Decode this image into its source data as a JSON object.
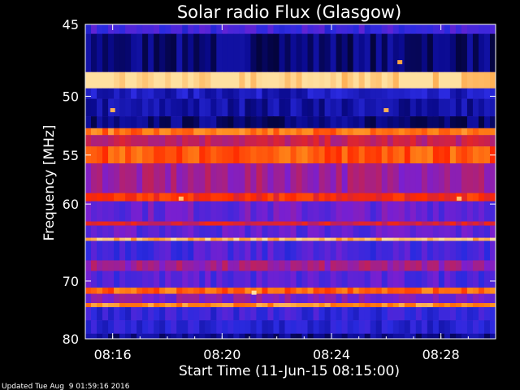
{
  "chart_data": {
    "type": "heatmap",
    "title": "Solar radio Flux (Glasgow)",
    "ylabel": "Frequency [MHz]",
    "xlabel": "Start Time (11-Jun-15 08:15:00)",
    "y_scale": "reciprocal",
    "ylim": [
      45,
      80
    ],
    "y_ticks": [
      45,
      50,
      55,
      60,
      70,
      80
    ],
    "y_tick_labels": [
      "45",
      "50",
      "55",
      "60",
      "70",
      "80"
    ],
    "x_start": "08:15:00",
    "x_end": "08:30:00",
    "x_ticks": [
      "08:16:00",
      "08:20:00",
      "08:24:00",
      "08:28:00"
    ],
    "x_tick_labels": [
      "08:16",
      "08:20",
      "08:24",
      "08:28"
    ],
    "colormap": [
      "#000010",
      "#0a0a90",
      "#2a2ae0",
      "#7a1fd0",
      "#c0205a",
      "#ff2a00",
      "#ff8a1a",
      "#ffe0a0"
    ],
    "background_level": 0.38,
    "frequency_bands": [
      {
        "mhz": [
          45.0,
          45.6
        ],
        "level": 0.32
      },
      {
        "mhz": [
          45.6,
          48.2
        ],
        "level": 0.12
      },
      {
        "mhz": [
          48.2,
          49.4
        ],
        "level": 0.99
      },
      {
        "mhz": [
          49.4,
          50.2
        ],
        "level": 0.22
      },
      {
        "mhz": [
          50.2,
          51.6
        ],
        "level": 0.18
      },
      {
        "mhz": [
          51.6,
          52.6
        ],
        "level": 0.12
      },
      {
        "mhz": [
          52.6,
          53.2
        ],
        "level": 0.82
      },
      {
        "mhz": [
          53.2,
          54.2
        ],
        "level": 0.58
      },
      {
        "mhz": [
          54.2,
          55.8
        ],
        "level": 0.78
      },
      {
        "mhz": [
          55.8,
          58.8
        ],
        "level": 0.5
      },
      {
        "mhz": [
          58.8,
          59.7
        ],
        "level": 0.7
      },
      {
        "mhz": [
          59.7,
          62.0
        ],
        "level": 0.4
      },
      {
        "mhz": [
          62.0,
          62.5
        ],
        "level": 0.62
      },
      {
        "mhz": [
          62.5,
          64.0
        ],
        "level": 0.38
      },
      {
        "mhz": [
          64.0,
          64.4
        ],
        "level": 0.93
      },
      {
        "mhz": [
          64.4,
          67.0
        ],
        "level": 0.34
      },
      {
        "mhz": [
          67.0,
          68.5
        ],
        "level": 0.5
      },
      {
        "mhz": [
          68.5,
          71.0
        ],
        "level": 0.36
      },
      {
        "mhz": [
          71.0,
          72.0
        ],
        "level": 0.8
      },
      {
        "mhz": [
          72.0,
          73.5
        ],
        "level": 0.44
      },
      {
        "mhz": [
          73.5,
          74.2
        ],
        "level": 0.86
      },
      {
        "mhz": [
          74.2,
          76.5
        ],
        "level": 0.3
      },
      {
        "mhz": [
          76.5,
          79.0
        ],
        "level": 0.26
      },
      {
        "mhz": [
          79.0,
          80.0
        ],
        "level": 0.14
      }
    ],
    "spikes": [
      {
        "time": "08:18:30",
        "mhz": 59.4,
        "level": 0.95
      },
      {
        "time": "08:28:40",
        "mhz": 59.4,
        "level": 0.95
      },
      {
        "time": "08:16:00",
        "mhz": 51.1,
        "level": 0.92
      },
      {
        "time": "08:26:00",
        "mhz": 51.1,
        "level": 0.92
      },
      {
        "time": "08:21:10",
        "mhz": 71.8,
        "level": 1.0
      },
      {
        "time": "08:26:30",
        "mhz": 47.5,
        "level": 0.9
      }
    ]
  },
  "footer": {
    "updated": "Updated Tue Aug  9 01:59:16 2016"
  }
}
